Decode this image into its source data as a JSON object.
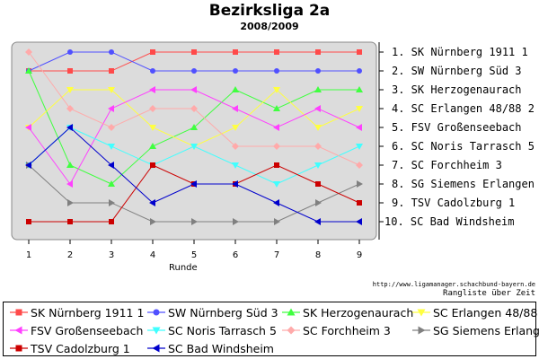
{
  "title": "Bezirksliga 2a",
  "subtitle": "2008/2009",
  "url": "http://www.ligamanager.schachbund-bayern.de",
  "caption": "Rangliste über Zeit",
  "chart_data": {
    "type": "line",
    "title": "Bezirksliga 2a",
    "subtitle": "2008/2009",
    "xlabel": "Runde",
    "x": [
      1,
      2,
      3,
      4,
      5,
      6,
      7,
      8,
      9
    ],
    "xlim": [
      1,
      9
    ],
    "ylim": [
      1,
      10
    ],
    "y_inverted": true,
    "grid": false,
    "plot_background": "#dcdcdc",
    "legend_position": "bottom",
    "rank_labels": [
      "1. SK Nürnberg 1911 1",
      "2. SW Nürnberg Süd 3",
      "3. SK Herzogenaurach",
      "4. SC Erlangen 48/88 2",
      "5. FSV Großenseebach",
      "6. SC Noris Tarrasch 5",
      "7. SC Forchheim 3",
      "8. SG Siemens Erlangen",
      "9. TSV Cadolzburg 1",
      "10. SC Bad Windsheim"
    ],
    "series": [
      {
        "name": "SK Nürnberg 1911 1",
        "color": "#ff4a4a",
        "marker": "square",
        "values": [
          2,
          2,
          2,
          1,
          1,
          1,
          1,
          1,
          1
        ]
      },
      {
        "name": "SW Nürnberg Süd 3",
        "color": "#5050ff",
        "marker": "circle",
        "values": [
          2,
          1,
          1,
          2,
          2,
          2,
          2,
          2,
          2
        ]
      },
      {
        "name": "SK Herzogenaurach",
        "color": "#40ff40",
        "marker": "triangle-up",
        "values": [
          2,
          7,
          8,
          6,
          5,
          3,
          4,
          3,
          3
        ]
      },
      {
        "name": "SC Erlangen 48/88 2",
        "color": "#ffff40",
        "marker": "triangle-down",
        "values": [
          5,
          3,
          3,
          5,
          6,
          5,
          3,
          5,
          4
        ]
      },
      {
        "name": "FSV Großenseebach",
        "color": "#ff40ff",
        "marker": "triangle-left",
        "values": [
          5,
          8,
          4,
          3,
          3,
          4,
          5,
          4,
          5
        ]
      },
      {
        "name": "SC Noris Tarrasch 5",
        "color": "#40ffff",
        "marker": "triangle-down",
        "values": [
          7,
          5,
          6,
          7,
          6,
          7,
          8,
          7,
          6
        ]
      },
      {
        "name": "SC Forchheim 3",
        "color": "#ffaaaa",
        "marker": "diamond",
        "values": [
          1,
          4,
          5,
          4,
          4,
          6,
          6,
          6,
          7
        ]
      },
      {
        "name": "SG Siemens Erlangen",
        "color": "#808080",
        "marker": "triangle-right",
        "values": [
          7,
          9,
          9,
          10,
          10,
          10,
          10,
          9,
          8
        ]
      },
      {
        "name": "TSV Cadolzburg 1",
        "color": "#cc0000",
        "marker": "square",
        "values": [
          10,
          10,
          10,
          7,
          8,
          8,
          7,
          8,
          9
        ]
      },
      {
        "name": "SC Bad Windsheim",
        "color": "#0000cc",
        "marker": "triangle-left",
        "values": [
          7,
          5,
          7,
          9,
          8,
          8,
          9,
          10,
          10
        ]
      }
    ]
  }
}
